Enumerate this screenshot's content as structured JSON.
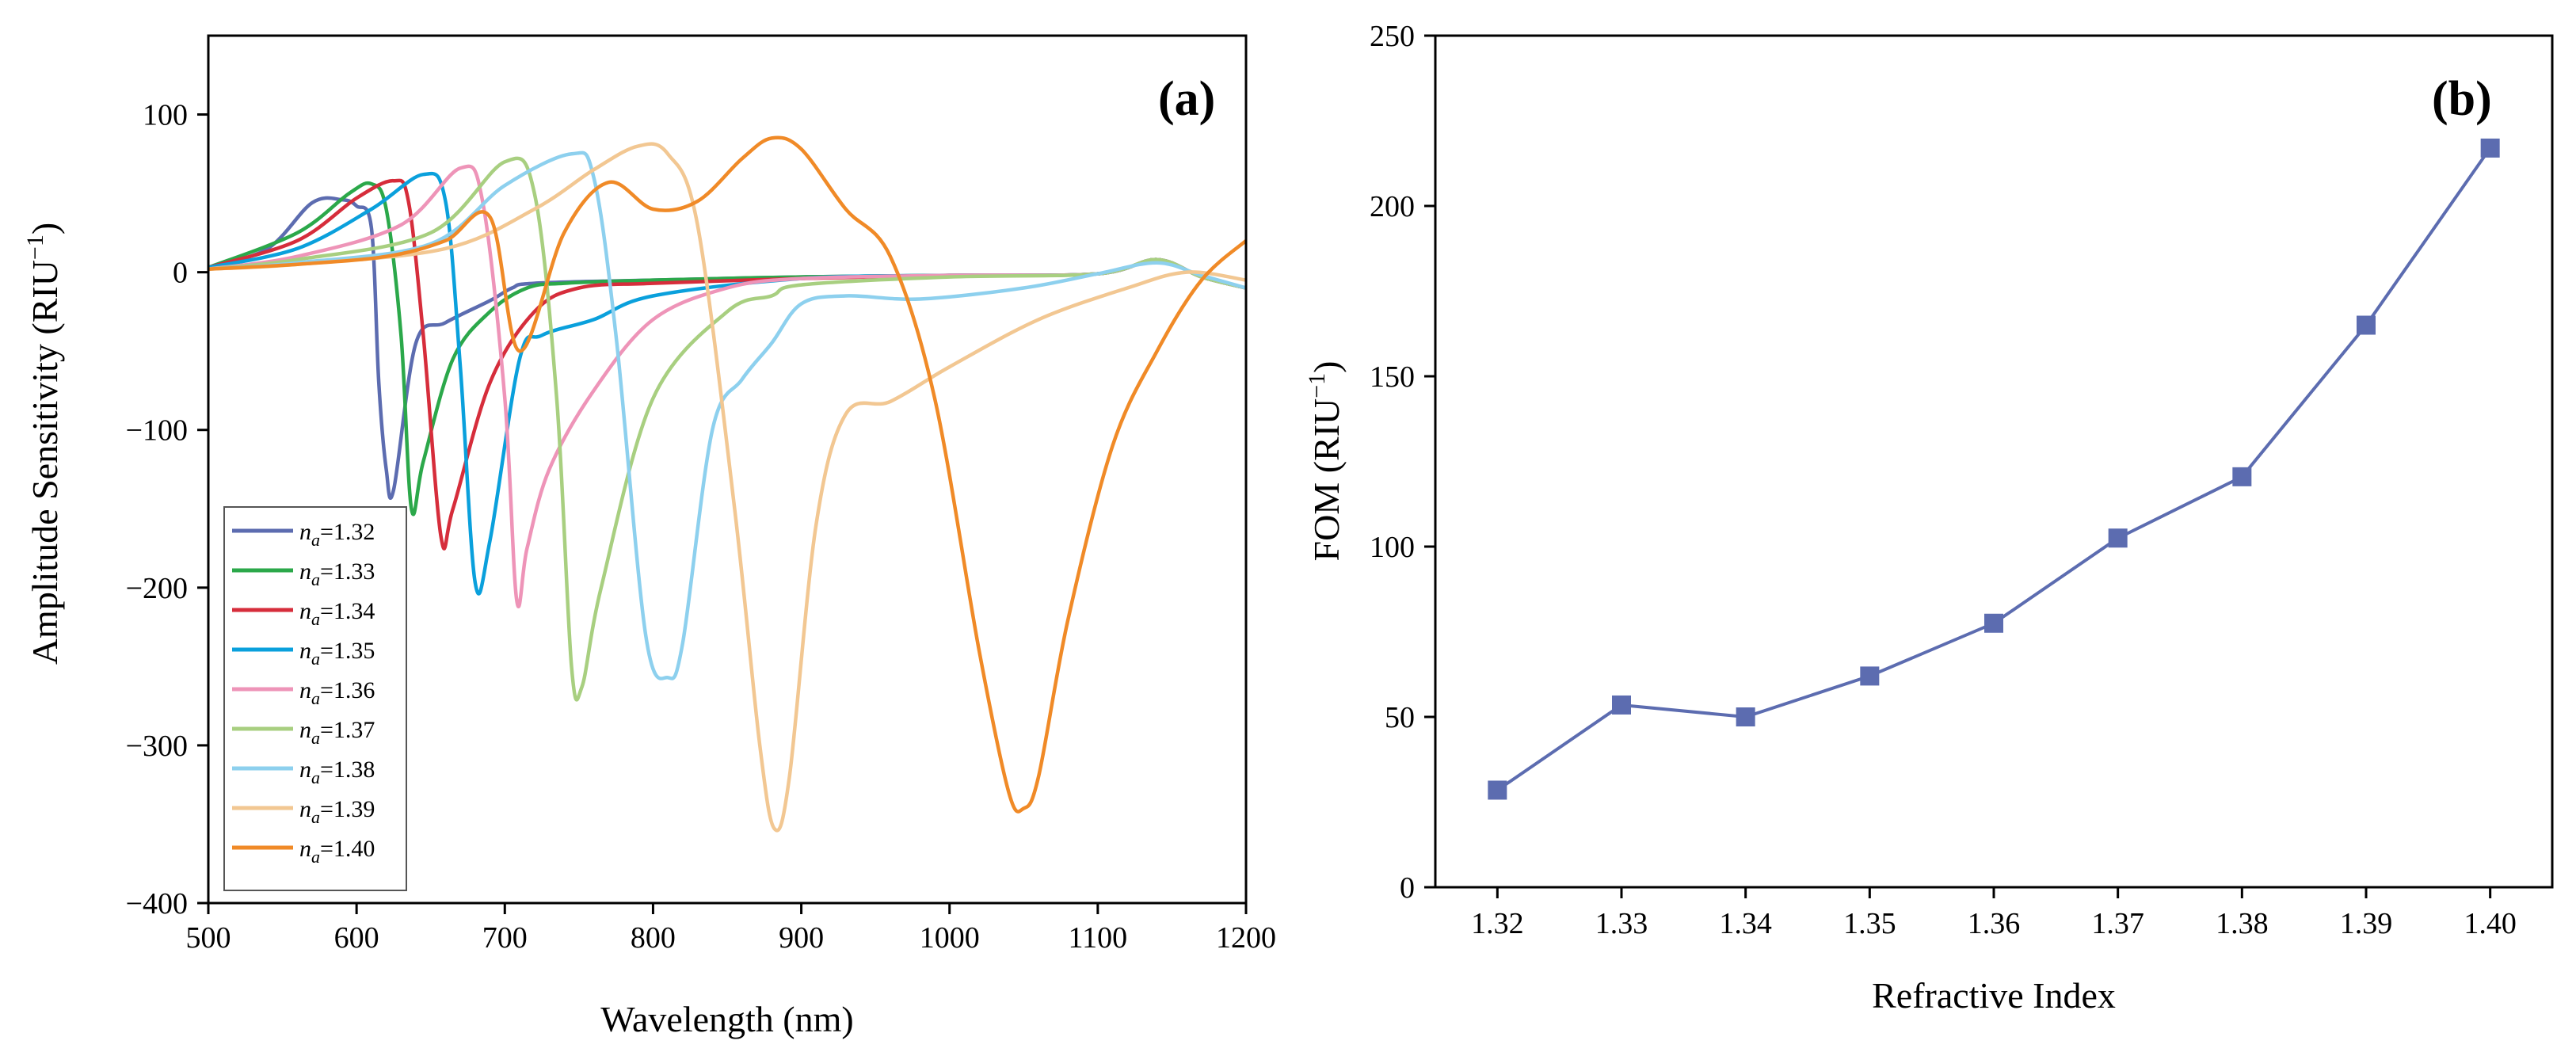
{
  "chart_data": [
    {
      "type": "line",
      "panel_label": "(a)",
      "xlabel": "Wavelength (nm)",
      "ylabel": "Amplitude Sensitivity (RIU",
      "ylabel_sup": "−1",
      "ylabel_end": ")",
      "xlim": [
        500,
        1200
      ],
      "ylim": [
        -400,
        150
      ],
      "xticks": [
        500,
        600,
        700,
        800,
        900,
        1000,
        1100,
        1200
      ],
      "xtick_labels": [
        "500",
        "600",
        "700",
        "800",
        "900",
        "1000",
        "1100",
        "1200"
      ],
      "yticks": [
        -400,
        -300,
        -200,
        -100,
        0,
        100
      ],
      "ytick_labels": [
        "−400",
        "−300",
        "−200",
        "−100",
        "0",
        "100"
      ],
      "legend_location": "bottom-left",
      "series": [
        {
          "name": "1.32",
          "color": "#5c6cb0",
          "x": [
            500,
            540,
            570,
            590,
            600,
            610,
            615,
            620,
            625,
            640,
            660,
            690,
            705,
            720,
            800,
            900,
            1000,
            1100,
            1140,
            1170,
            1200
          ],
          "y": [
            3,
            15,
            44,
            46,
            42,
            28,
            -70,
            -125,
            -138,
            -45,
            -32,
            -18,
            -10,
            -7,
            -5,
            -3,
            -2,
            -1,
            8,
            -3,
            -10
          ]
        },
        {
          "name": "1.33",
          "color": "#2ba84a",
          "x": [
            500,
            560,
            595,
            610,
            620,
            630,
            637,
            645,
            665,
            690,
            715,
            740,
            800,
            900,
            1000,
            1100,
            1140,
            1170,
            1200
          ],
          "y": [
            3,
            25,
            50,
            56,
            40,
            -40,
            -150,
            -120,
            -55,
            -25,
            -10,
            -7,
            -5,
            -3,
            -2,
            -1,
            8,
            -3,
            -10
          ]
        },
        {
          "name": "1.34",
          "color": "#d62d3b",
          "x": [
            500,
            560,
            600,
            625,
            635,
            645,
            657,
            665,
            690,
            720,
            750,
            800,
            900,
            1000,
            1100,
            1140,
            1170,
            1200
          ],
          "y": [
            3,
            20,
            47,
            58,
            45,
            -40,
            -168,
            -150,
            -70,
            -25,
            -10,
            -7,
            -4,
            -2,
            -1,
            8,
            -3,
            -10
          ]
        },
        {
          "name": "1.35",
          "color": "#0aa0dc",
          "x": [
            500,
            560,
            610,
            645,
            660,
            670,
            680,
            690,
            710,
            725,
            760,
            800,
            900,
            1000,
            1100,
            1140,
            1170,
            1200
          ],
          "y": [
            3,
            15,
            40,
            62,
            45,
            -60,
            -197,
            -170,
            -55,
            -40,
            -30,
            -15,
            -4,
            -2,
            -1,
            8,
            -3,
            -10
          ]
        },
        {
          "name": "1.36",
          "color": "#ee94b8",
          "x": [
            500,
            560,
            630,
            670,
            685,
            700,
            708,
            715,
            730,
            760,
            800,
            850,
            900,
            1000,
            1100,
            1140,
            1170,
            1200
          ],
          "y": [
            2,
            10,
            30,
            66,
            45,
            -80,
            -208,
            -175,
            -125,
            -75,
            -30,
            -10,
            -4,
            -2,
            -1,
            8,
            -3,
            -10
          ]
        },
        {
          "name": "1.37",
          "color": "#a8cf80",
          "x": [
            500,
            560,
            650,
            700,
            720,
            735,
            745,
            752,
            765,
            800,
            850,
            880,
            900,
            1000,
            1100,
            1140,
            1170,
            1200
          ],
          "y": [
            2,
            8,
            25,
            70,
            50,
            -80,
            -250,
            -263,
            -200,
            -80,
            -25,
            -15,
            -8,
            -3,
            -1,
            8,
            -3,
            -10
          ]
        },
        {
          "name": "1.38",
          "color": "#8dd0ee",
          "x": [
            500,
            560,
            650,
            700,
            745,
            760,
            775,
            795,
            810,
            820,
            840,
            860,
            880,
            900,
            930,
            980,
            1050,
            1100,
            1140,
            1170,
            1200
          ],
          "y": [
            2,
            6,
            18,
            55,
            75,
            60,
            -40,
            -230,
            -257,
            -235,
            -100,
            -68,
            -45,
            -20,
            -15,
            -17,
            -10,
            -1,
            6,
            -2,
            -10
          ]
        },
        {
          "name": "1.39",
          "color": "#f2c792",
          "x": [
            500,
            560,
            660,
            720,
            760,
            790,
            810,
            830,
            855,
            872,
            882,
            892,
            910,
            930,
            960,
            1000,
            1060,
            1120,
            1160,
            1200
          ],
          "y": [
            2,
            5,
            15,
            40,
            65,
            80,
            75,
            30,
            -150,
            -300,
            -353,
            -320,
            -160,
            -90,
            -82,
            -60,
            -30,
            -10,
            0,
            -5
          ]
        },
        {
          "name": "1.40",
          "color": "#f08a27",
          "x": [
            500,
            560,
            620,
            660,
            690,
            710,
            740,
            770,
            800,
            830,
            860,
            880,
            900,
            930,
            960,
            990,
            1020,
            1040,
            1050,
            1060,
            1080,
            1110,
            1140,
            1170,
            1200
          ],
          "y": [
            2,
            5,
            10,
            20,
            35,
            -50,
            25,
            57,
            40,
            45,
            72,
            85,
            78,
            40,
            10,
            -80,
            -240,
            -330,
            -340,
            -320,
            -220,
            -110,
            -50,
            -5,
            20
          ]
        }
      ]
    },
    {
      "type": "line",
      "panel_label": "(b)",
      "xlabel": "Refractive Index",
      "ylabel": "FOM (RIU",
      "ylabel_sup": "−1",
      "ylabel_end": ")",
      "xlim": [
        1.315,
        1.405
      ],
      "ylim": [
        0,
        250
      ],
      "xticks": [
        1.32,
        1.33,
        1.34,
        1.35,
        1.36,
        1.37,
        1.38,
        1.39,
        1.4
      ],
      "xtick_labels": [
        "1.32",
        "1.33",
        "1.34",
        "1.35",
        "1.36",
        "1.37",
        "1.38",
        "1.39",
        "1.40"
      ],
      "yticks": [
        0,
        50,
        100,
        150,
        200,
        250
      ],
      "ytick_labels": [
        "0",
        "50",
        "100",
        "150",
        "200",
        "250"
      ],
      "series": [
        {
          "name": "FOM",
          "color": "#5c6cb0",
          "marker": "square",
          "x": [
            1.32,
            1.33,
            1.34,
            1.35,
            1.36,
            1.37,
            1.38,
            1.39,
            1.4
          ],
          "y": [
            28.5,
            53.5,
            50,
            62,
            77.5,
            102.5,
            120.5,
            165,
            217
          ]
        }
      ]
    }
  ]
}
